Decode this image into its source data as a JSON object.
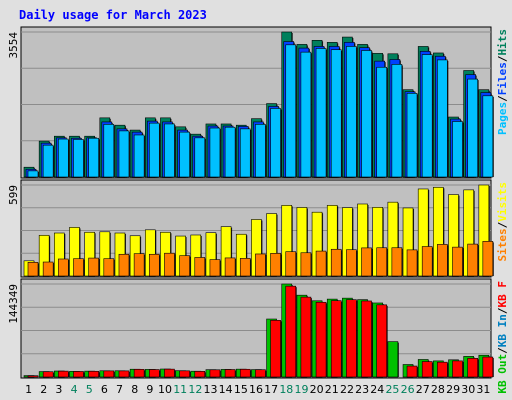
{
  "colors": {
    "background": "#e0e0e0",
    "panel": "#c0c0c0",
    "title": "#0000ff",
    "gridline": "#8c8c8c",
    "hits": "#00805c",
    "files": "#0040ff",
    "pages": "#00c0ff",
    "visits": "#ffff00",
    "sites": "#ff8000",
    "kbin": "#0080c0",
    "kbout": "#00c000",
    "kbf": "#ff0000",
    "weekday_text": "#000000",
    "weekend_text": "#00805c"
  },
  "chart_data": {
    "type": "bar",
    "title": "Daily usage for March 2023",
    "x": [
      "1",
      "2",
      "3",
      "4",
      "5",
      "6",
      "7",
      "8",
      "9",
      "10",
      "11",
      "12",
      "13",
      "14",
      "15",
      "16",
      "17",
      "18",
      "19",
      "20",
      "21",
      "22",
      "23",
      "24",
      "25",
      "26",
      "27",
      "28",
      "29",
      "30",
      "31"
    ],
    "weekend_days": [
      "4",
      "5",
      "11",
      "12",
      "18",
      "19",
      "25",
      "26"
    ],
    "panels": [
      {
        "axis_label": "3554",
        "ymax": 3554,
        "legend": [
          {
            "text": "Hits",
            "color": "hits"
          },
          {
            "text": "/",
            "color": "legend_sep"
          },
          {
            "text": "Files",
            "color": "files"
          },
          {
            "text": "/",
            "color": "legend_sep"
          },
          {
            "text": "Pages",
            "color": "pages"
          }
        ],
        "series": [
          {
            "name": "Hits",
            "color": "hits",
            "values": [
              240,
              880,
              1000,
              1000,
              1000,
              1450,
              1270,
              1150,
              1450,
              1450,
              1230,
              1050,
              1300,
              1300,
              1270,
              1430,
              1800,
              3554,
              3250,
              3350,
              3300,
              3430,
              3250,
              3030,
              3020,
              2140,
              3200,
              3040,
              1470,
              2610,
              2140
            ]
          },
          {
            "name": "Files",
            "color": "files",
            "values": [
              190,
              830,
              960,
              950,
              960,
              1350,
              1180,
              1100,
              1370,
              1350,
              1150,
              1000,
              1250,
              1250,
              1240,
              1350,
              1730,
              3320,
              3160,
              3200,
              3200,
              3300,
              3170,
              2840,
              2880,
              2090,
              3080,
              2960,
              1420,
              2510,
              2070
            ]
          },
          {
            "name": "Pages",
            "color": "pages",
            "values": [
              150,
              780,
              930,
              920,
              950,
              1290,
              1130,
              1030,
              1320,
              1300,
              1100,
              960,
              1200,
              1220,
              1180,
              1290,
              1680,
              3240,
              3060,
              3150,
              3120,
              3200,
              3100,
              2690,
              2760,
              2050,
              3000,
              2870,
              1360,
              2400,
              1990
            ]
          }
        ]
      },
      {
        "axis_label": "599",
        "ymax": 599,
        "legend": [
          {
            "text": "Visits",
            "color": "visits"
          },
          {
            "text": "/",
            "color": "legend_sep"
          },
          {
            "text": "Sites",
            "color": "sites"
          }
        ],
        "series": [
          {
            "name": "Visits",
            "color": "visits",
            "values": [
              100,
              268,
              283,
              320,
              288,
              291,
              283,
              265,
              304,
              288,
              263,
              270,
              285,
              325,
              275,
              372,
              411,
              465,
              451,
              420,
              465,
              450,
              474,
              452,
              486,
              448,
              573,
              584,
              536,
              567,
              599
            ]
          },
          {
            "name": "Sites",
            "color": "sites",
            "values": [
              90,
              92,
              112,
              114,
              118,
              114,
              143,
              147,
              143,
              150,
              134,
              122,
              108,
              119,
              116,
              145,
              149,
              160,
              153,
              164,
              176,
              173,
              185,
              186,
              186,
              172,
              194,
              208,
              190,
              210,
              228
            ]
          }
        ]
      },
      {
        "axis_label": "144349",
        "ymax": 144349,
        "legend": [
          {
            "text": "Visits",
            "color": "kbout",
            "hidden": true
          },
          {
            "text": "Sites",
            "color": "kbin",
            "hidden": true
          },
          {
            "text": "KB F",
            "color": "kbf"
          },
          {
            "text": "/",
            "color": "legend_sep"
          },
          {
            "text": "KB In",
            "color": "kbin"
          },
          {
            "text": "/",
            "color": "legend_sep"
          },
          {
            "text": "KB Out",
            "color": "kbout"
          }
        ],
        "series": [
          {
            "name": "KB Out",
            "color": "kbout",
            "values": [
              2200,
              8400,
              9300,
              8800,
              9100,
              9700,
              9700,
              12100,
              11800,
              12400,
              9800,
              9000,
              11400,
              11800,
              12200,
              11500,
              90000,
              144349,
              127000,
              118300,
              120900,
              122400,
              120100,
              114900,
              54900,
              19400,
              27200,
              25000,
              26700,
              32000,
              33800
            ]
          },
          {
            "name": "KB F",
            "color": "kbf",
            "values": [
              2000,
              8200,
              9100,
              8600,
              8900,
              9500,
              9500,
              11900,
              11600,
              12200,
              9600,
              8800,
              11200,
              11600,
              12000,
              11300,
              88000,
              141000,
              124000,
              116000,
              118500,
              120000,
              118000,
              112000,
              0,
              17000,
              24000,
              23000,
              25000,
              29000,
              31000
            ]
          }
        ]
      }
    ]
  }
}
